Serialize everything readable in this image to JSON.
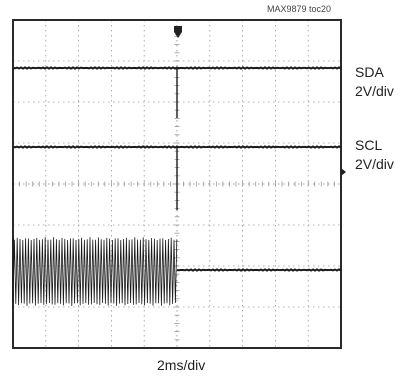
{
  "doc_id": "MAX9879 toc20",
  "chart_data": {
    "type": "oscilloscope",
    "timebase": "2ms/div",
    "grid": true,
    "divisions": {
      "x": 10,
      "y": 8
    },
    "trigger_position_div": 5,
    "series": [
      {
        "name": "SDA",
        "scale": "2V/div",
        "behavior": "steady high level with a single short glitch at the trigger point"
      },
      {
        "name": "SCL",
        "scale": "2V/div",
        "behavior": "steady high level with a single short glitch at the trigger point"
      },
      {
        "name": "",
        "scale": "",
        "behavior": "high-frequency oscillation until the trigger point, then a constant level"
      }
    ]
  },
  "colors": {
    "trace": "#1a1a1a",
    "grid": "#9a9a9a",
    "frame": "#2a2a2a"
  }
}
